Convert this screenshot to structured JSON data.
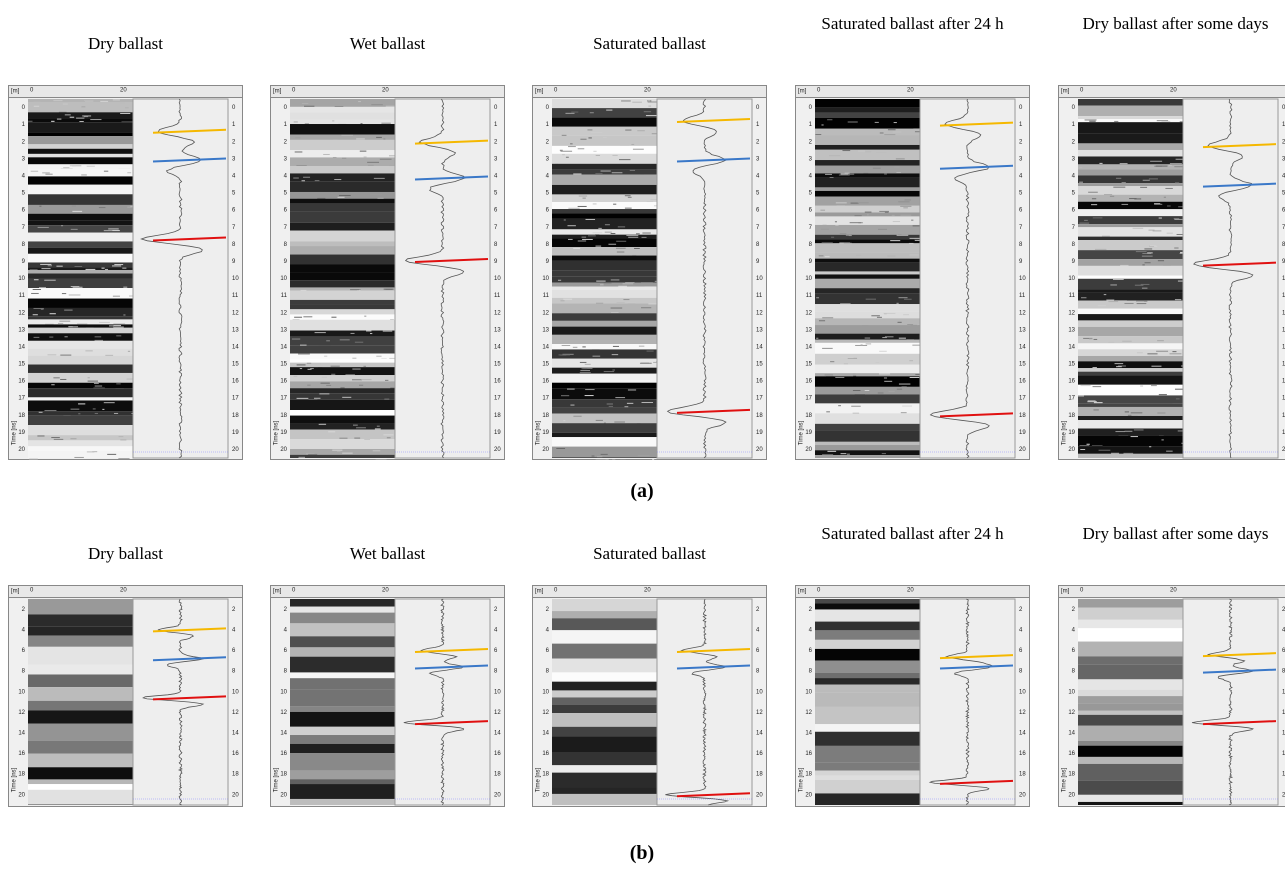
{
  "figure": {
    "rows": [
      {
        "label": "(a)",
        "header": {
          "unit": "[m]",
          "start": "0",
          "end": "20"
        },
        "axis_label": "Time [ns]",
        "ticks": [
          0,
          1,
          2,
          3,
          4,
          5,
          6,
          7,
          8,
          9,
          10,
          11,
          12,
          13,
          14,
          15,
          16,
          17,
          18,
          19,
          20
        ],
        "panels": [
          {
            "title": "Dry ballast"
          },
          {
            "title": "Wet ballast"
          },
          {
            "title": "Saturated ballast"
          },
          {
            "title": "Saturated ballast after 24 h"
          },
          {
            "title": "Dry ballast after some days"
          }
        ]
      },
      {
        "label": "(b)",
        "header": {
          "unit": "[m]",
          "start": "0",
          "end": "20"
        },
        "axis_label": "Time [ns]",
        "ticks": [
          2,
          4,
          6,
          8,
          10,
          12,
          14,
          16,
          18,
          20
        ],
        "panels": [
          {
            "title": "Dry ballast"
          },
          {
            "title": "Wet ballast"
          },
          {
            "title": "Saturated ballast"
          },
          {
            "title": "Saturated ballast after 24 h"
          },
          {
            "title": "Dry ballast after some days"
          }
        ]
      }
    ]
  }
}
